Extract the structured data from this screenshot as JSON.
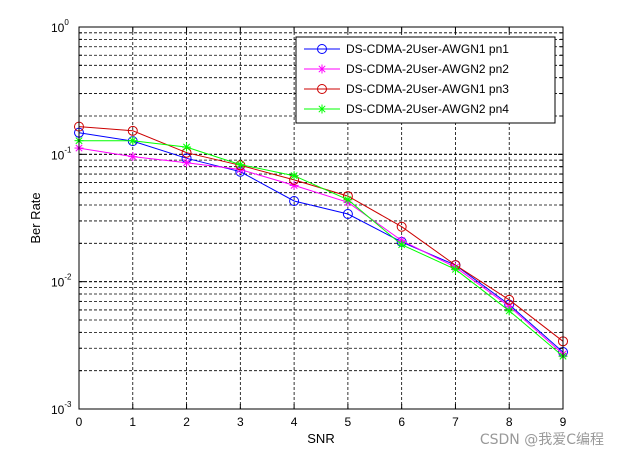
{
  "chart_data": {
    "type": "line",
    "xlabel": "SNR",
    "ylabel": "Ber Rate",
    "xlim": [
      0,
      9
    ],
    "ylim": [
      0.001,
      1
    ],
    "yscale": "log",
    "grid": true,
    "legend_position": "top-right",
    "x": [
      0,
      1,
      2,
      3,
      4,
      5,
      6,
      7,
      8,
      9
    ],
    "x_ticks": [
      "0",
      "1",
      "2",
      "3",
      "4",
      "5",
      "6",
      "7",
      "8",
      "9"
    ],
    "y_ticks": [
      {
        "value": 0.001,
        "base": "10",
        "exp": "-3"
      },
      {
        "value": 0.01,
        "base": "10",
        "exp": "-2"
      },
      {
        "value": 0.1,
        "base": "10",
        "exp": "-1"
      },
      {
        "value": 1,
        "base": "10",
        "exp": "0"
      }
    ],
    "series": [
      {
        "name": "DS-CDMA-2User-AWGN1 pn1",
        "color": "#0000ff",
        "marker": "circle",
        "values": [
          0.148,
          0.127,
          0.093,
          0.073,
          0.043,
          0.034,
          0.0205,
          0.0135,
          0.0066,
          0.0028
        ]
      },
      {
        "name": "DS-CDMA-2User-AWGN2 pn2",
        "color": "#ff00ff",
        "marker": "star",
        "values": [
          0.112,
          0.096,
          0.086,
          0.076,
          0.057,
          0.042,
          0.021,
          0.013,
          0.0064,
          0.0027
        ]
      },
      {
        "name": "DS-CDMA-2User-AWGN1 pn3",
        "color": "#cc0000",
        "marker": "circle",
        "values": [
          0.165,
          0.153,
          0.103,
          0.082,
          0.063,
          0.047,
          0.027,
          0.0135,
          0.0072,
          0.0034
        ]
      },
      {
        "name": "DS-CDMA-2User-AWGN2 pn4",
        "color": "#00ff00",
        "marker": "star",
        "values": [
          0.128,
          0.128,
          0.114,
          0.083,
          0.068,
          0.044,
          0.0195,
          0.0125,
          0.0059,
          0.0026
        ]
      }
    ]
  },
  "watermark": "CSDN @我爱C编程"
}
